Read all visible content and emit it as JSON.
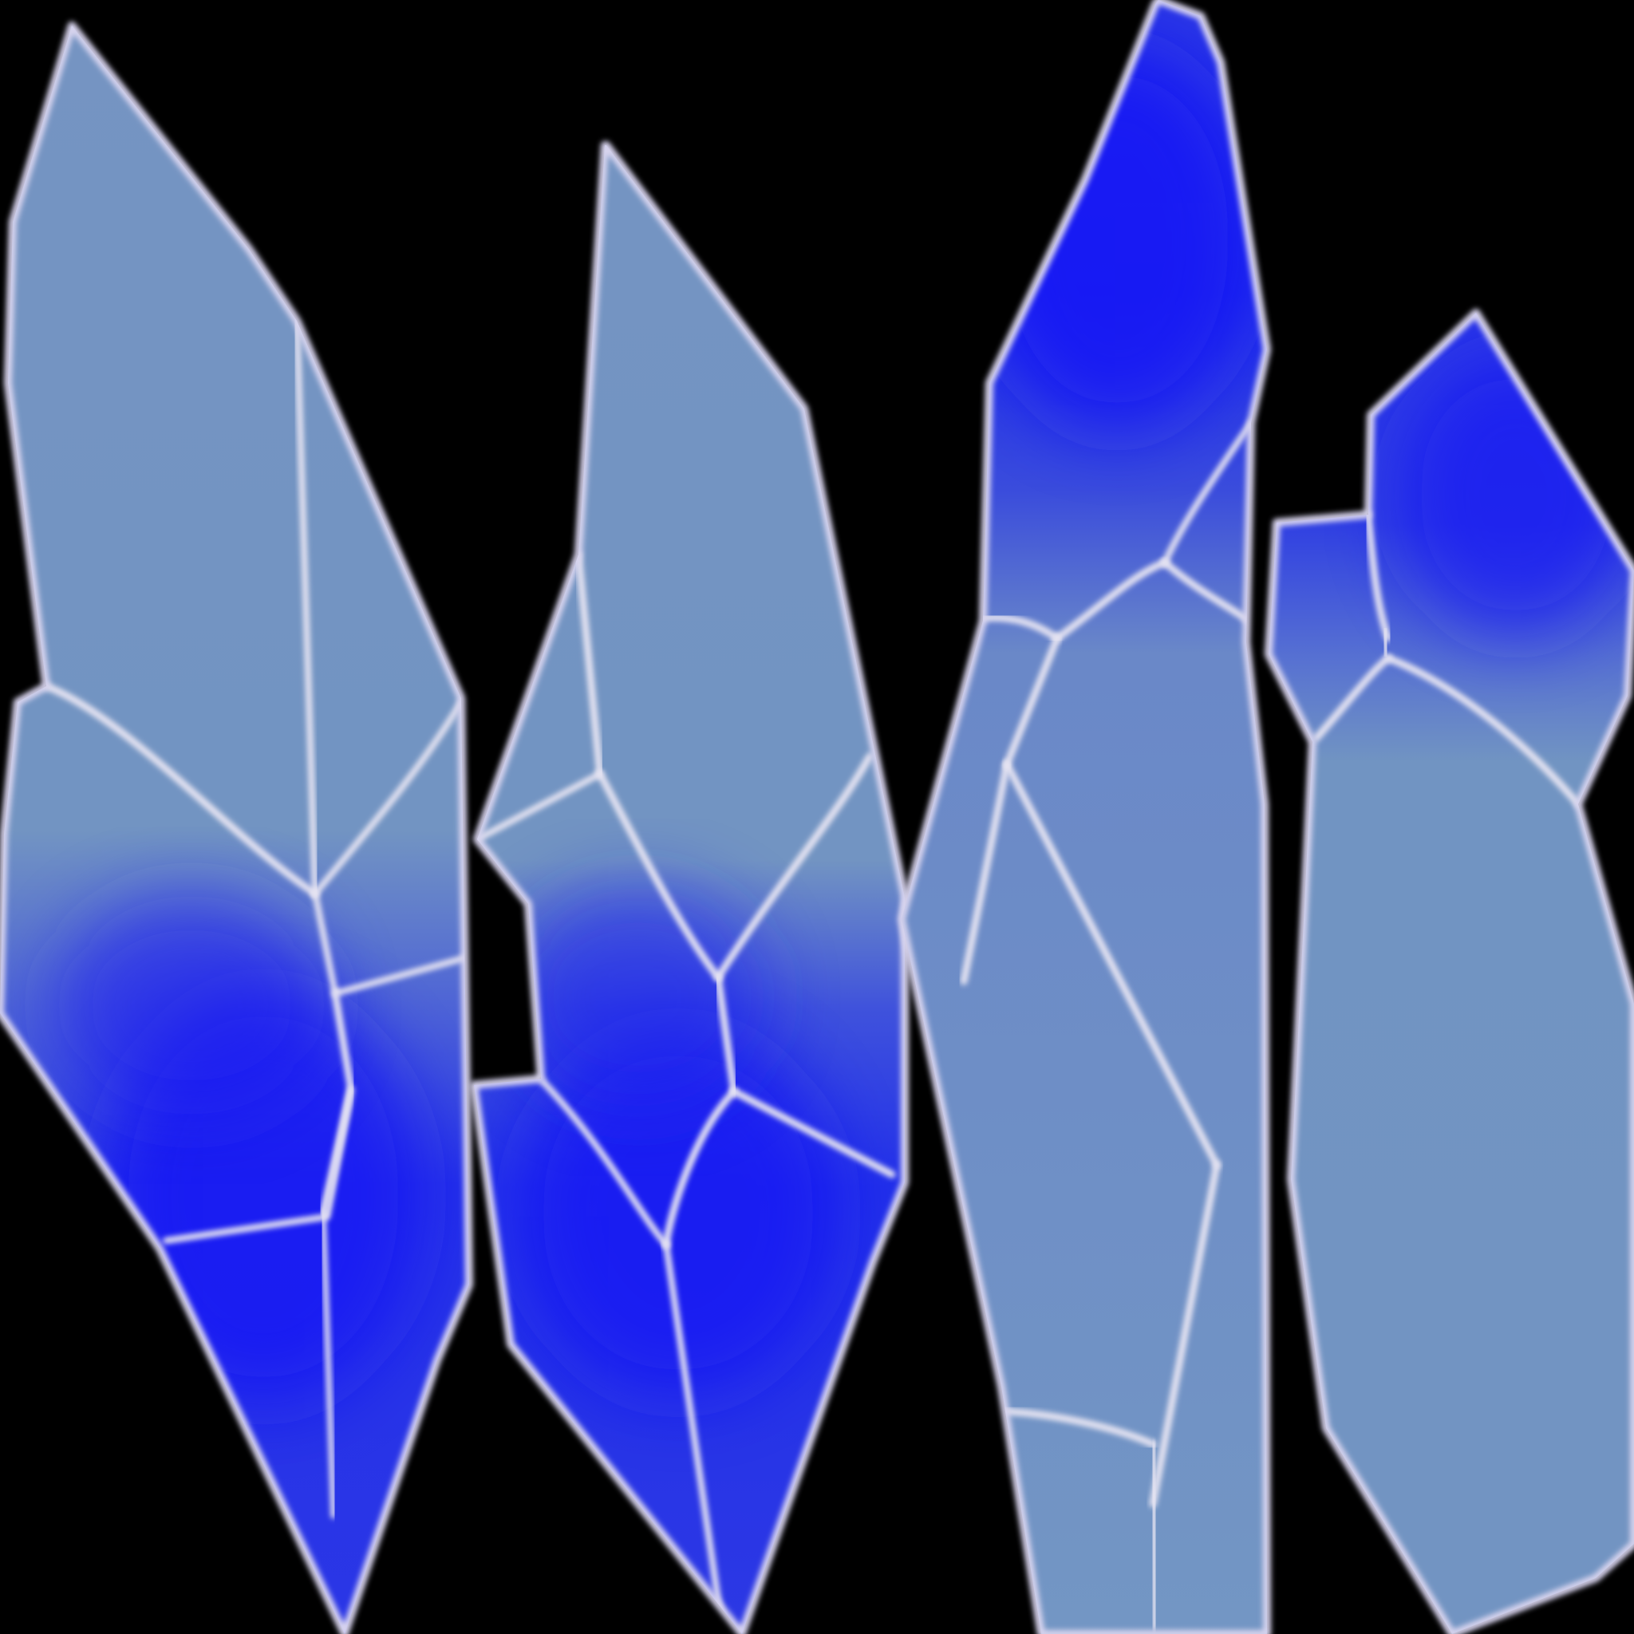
{
  "image": {
    "subject": "crystal-shard-texture-atlas",
    "background_color": "#000000"
  },
  "palette": {
    "pale_blue": "#7293c1",
    "deep_blue": "#1a1fee",
    "mid_blue": "#2f3ce4",
    "highlight": "#e6e4f2"
  },
  "shards": [
    {
      "name": "shard-1",
      "blue_region": "lower-half"
    },
    {
      "name": "shard-2",
      "blue_region": "lower-half"
    },
    {
      "name": "shard-3",
      "blue_region": "top"
    },
    {
      "name": "shard-4",
      "blue_region": "top"
    }
  ]
}
